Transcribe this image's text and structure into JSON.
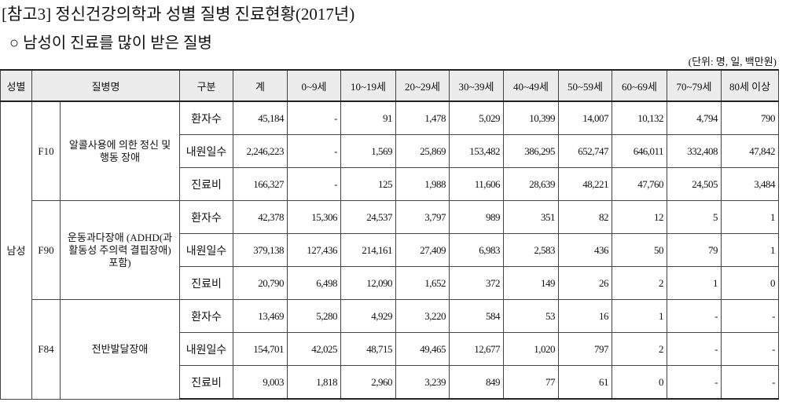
{
  "header": {
    "title": "[참고3] 정신건강의학과 성별 질병 진료현황(2017년)",
    "subtitle": "○ 남성이 진료를 많이 받은 질병",
    "unit": "(단위: 명, 일, 백만원)"
  },
  "table": {
    "columns": [
      "성별",
      "질병명",
      "구분",
      "계",
      "0~9세",
      "10~19세",
      "20~29세",
      "30~39세",
      "40~49세",
      "50~59세",
      "60~69세",
      "70~79세",
      "80세 이상"
    ],
    "sex": "남성",
    "groups": [
      {
        "code": "F10",
        "name": "알콜사용에 의한 정신 및 행동 장애",
        "rows": [
          {
            "kind": "환자수",
            "values": [
              "45,184",
              "-",
              "91",
              "1,478",
              "5,029",
              "10,399",
              "14,007",
              "10,132",
              "4,794",
              "790"
            ]
          },
          {
            "kind": "내원일수",
            "values": [
              "2,246,223",
              "-",
              "1,569",
              "25,869",
              "153,482",
              "386,295",
              "652,747",
              "646,011",
              "332,408",
              "47,842"
            ]
          },
          {
            "kind": "진료비",
            "values": [
              "166,327",
              "-",
              "125",
              "1,988",
              "11,606",
              "28,639",
              "48,221",
              "47,760",
              "24,505",
              "3,484"
            ]
          }
        ]
      },
      {
        "code": "F90",
        "name": "운동과다장애 (ADHD(과활동성 주의력 결핍장애) 포함)",
        "rows": [
          {
            "kind": "환자수",
            "values": [
              "42,378",
              "15,306",
              "24,537",
              "3,797",
              "989",
              "351",
              "82",
              "12",
              "5",
              "1"
            ]
          },
          {
            "kind": "내원일수",
            "values": [
              "379,138",
              "127,436",
              "214,161",
              "27,409",
              "6,983",
              "2,583",
              "436",
              "50",
              "79",
              "1"
            ]
          },
          {
            "kind": "진료비",
            "values": [
              "20,790",
              "6,498",
              "12,090",
              "1,652",
              "372",
              "149",
              "26",
              "2",
              "1",
              "0"
            ]
          }
        ]
      },
      {
        "code": "F84",
        "name": "전반발달장애",
        "rows": [
          {
            "kind": "환자수",
            "values": [
              "13,469",
              "5,280",
              "4,929",
              "3,220",
              "584",
              "53",
              "16",
              "1",
              "-",
              "-"
            ]
          },
          {
            "kind": "내원일수",
            "values": [
              "154,701",
              "42,025",
              "48,715",
              "49,465",
              "12,677",
              "1,020",
              "797",
              "2",
              "-",
              "-"
            ]
          },
          {
            "kind": "진료비",
            "values": [
              "9,003",
              "1,818",
              "2,960",
              "3,239",
              "849",
              "77",
              "61",
              "0",
              "-",
              "-"
            ]
          }
        ]
      }
    ]
  }
}
